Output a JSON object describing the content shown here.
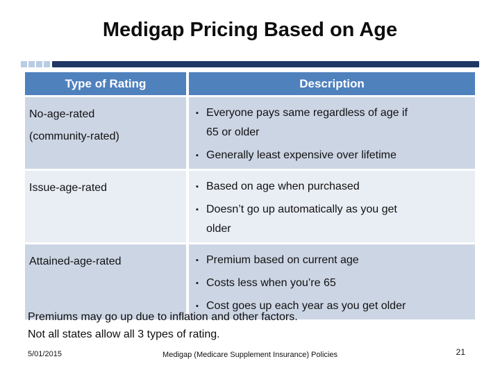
{
  "slide": {
    "title": "Medigap Pricing Based on Age",
    "colors": {
      "header_blue": "#4f81bd",
      "navy_bar": "#1f3864",
      "decor_square_light": "#b8cce4",
      "row_odd_bg": "#ccd5e4",
      "row_even_bg": "#e9edf4"
    },
    "table": {
      "bullet_glyph": "▪",
      "headers": [
        "Type of Rating",
        "Description"
      ],
      "rows": [
        {
          "type_line1": "No-age-rated",
          "type_line2": "(community-rated)",
          "bullets": [
            "Everyone pays same regardless of age if\n65 or older",
            "Generally least expensive over lifetime"
          ]
        },
        {
          "type_line1": "Issue-age-rated",
          "type_line2": "",
          "bullets": [
            "Based on age when purchased",
            "Doesn’t go up automatically as you get\nolder"
          ]
        },
        {
          "type_line1": "Attained-age-rated",
          "type_line2": "",
          "bullets": [
            "Premium based on current age",
            "Costs less when you’re 65",
            "Cost goes up each year as you get older"
          ]
        }
      ]
    },
    "notes": {
      "line1": "Premiums may go up due to inflation and other factors.",
      "line2": "Not all states allow all 3 types of rating."
    },
    "footer": {
      "date": "5/01/2015",
      "center": "Medigap (Medicare Supplement Insurance) Policies",
      "page": "21"
    }
  }
}
